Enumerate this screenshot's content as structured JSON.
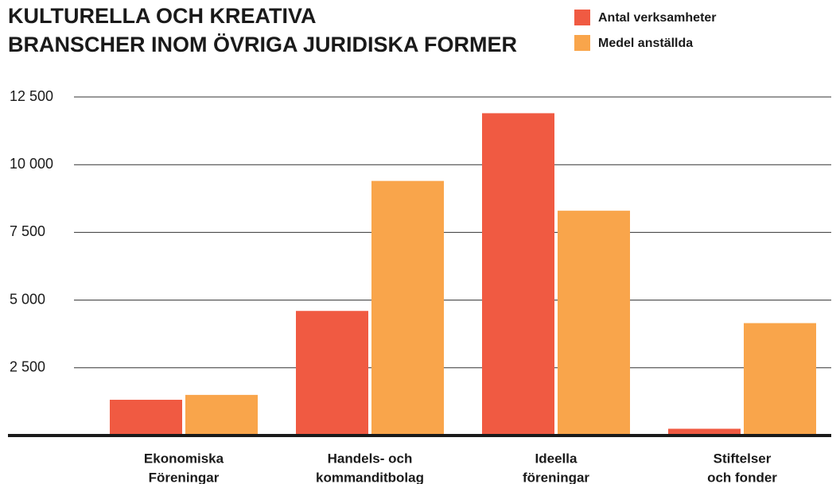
{
  "chart_data": {
    "type": "bar",
    "title": [
      "KULTURELLA OCH KREATIVA",
      "BRANSCHER INOM ÖVRIGA JURIDISKA FORMER"
    ],
    "categories": [
      [
        "Ekonomiska",
        "Föreningar"
      ],
      [
        "Handels- och",
        "kommanditbolag"
      ],
      [
        "Ideella",
        "föreningar"
      ],
      [
        "Stiftelser",
        "och fonder"
      ]
    ],
    "series": [
      {
        "name": "Antal verksamheter",
        "color": "#f05a42",
        "values": [
          1320,
          4600,
          11900,
          250
        ]
      },
      {
        "name": "Medel anställda",
        "color": "#f9a54b",
        "values": [
          1500,
          9400,
          8300,
          4150
        ]
      }
    ],
    "ylim": [
      0,
      12500
    ],
    "yticks": [
      {
        "value": 2500,
        "label": "2 500"
      },
      {
        "value": 5000,
        "label": "5 000"
      },
      {
        "value": 7500,
        "label": "7 500"
      },
      {
        "value": 10000,
        "label": "10 000"
      },
      {
        "value": 12500,
        "label": "12 500"
      }
    ],
    "grid": true
  }
}
